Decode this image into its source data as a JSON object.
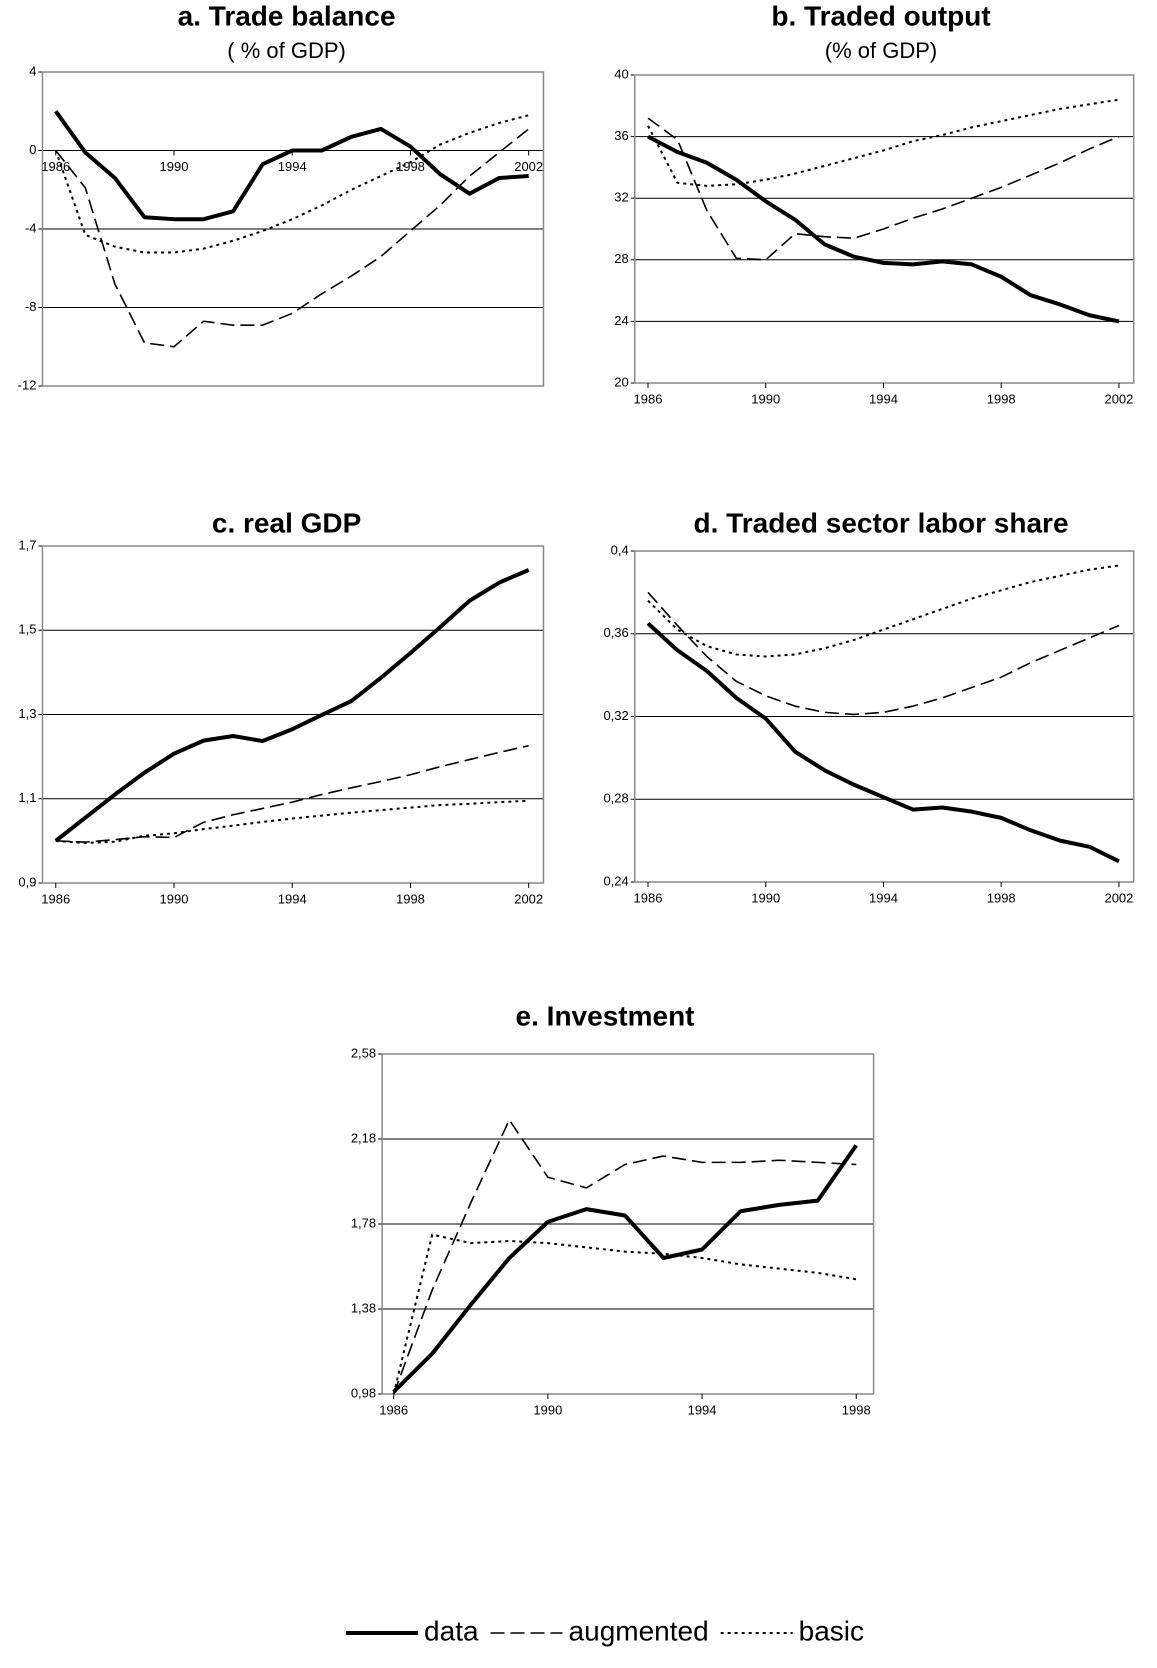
{
  "chart_data": [
    {
      "type": "line",
      "title": "a. Trade balance",
      "subtitle": "( % of GDP)",
      "x": [
        1986,
        1987,
        1988,
        1989,
        1990,
        1991,
        1992,
        1993,
        1994,
        1995,
        1996,
        1997,
        1998,
        1999,
        2000,
        2001,
        2002
      ],
      "xlim": [
        1985.55,
        2002.5
      ],
      "xticks": [
        1986,
        1990,
        1994,
        1998,
        2002
      ],
      "x_labels_at_zero": true,
      "ylim": [
        -12,
        4
      ],
      "yticks": [
        -12,
        -8,
        -4,
        0,
        4
      ],
      "grid": true,
      "series": [
        {
          "name": "data",
          "color": "#000000",
          "dash": "solid",
          "values": [
            2.0,
            -0.1,
            -1.4,
            -3.4,
            -3.5,
            -3.5,
            -3.1,
            -0.7,
            0.0,
            0.0,
            0.7,
            1.1,
            0.2,
            -1.2,
            -2.2,
            -1.4,
            -1.3
          ]
        },
        {
          "name": "augmented",
          "color": "#000000",
          "dash": "dashed",
          "values": [
            0,
            -1.9,
            -6.8,
            -9.8,
            -10.0,
            -8.7,
            -8.9,
            -8.9,
            -8.3,
            -7.3,
            -6.4,
            -5.4,
            -4.1,
            -2.8,
            -1.3,
            -0.1,
            1.1
          ]
        },
        {
          "name": "basic",
          "color": "#000000",
          "dash": "dotted",
          "values": [
            0,
            -4.3,
            -4.9,
            -5.2,
            -5.2,
            -5.0,
            -4.6,
            -4.1,
            -3.5,
            -2.8,
            -2.0,
            -1.3,
            -0.6,
            0.3,
            0.9,
            1.4,
            1.8
          ]
        }
      ]
    },
    {
      "type": "line",
      "title": "b. Traded output",
      "subtitle": "(% of GDP)",
      "x": [
        1986,
        1987,
        1988,
        1989,
        1990,
        1991,
        1992,
        1993,
        1994,
        1995,
        1996,
        1997,
        1998,
        1999,
        2000,
        2001,
        2002
      ],
      "xlim": [
        1985.55,
        2002.5
      ],
      "xticks": [
        1986,
        1990,
        1994,
        1998,
        2002
      ],
      "ylim": [
        20,
        40
      ],
      "yticks": [
        20,
        24,
        28,
        32,
        36,
        40
      ],
      "grid": true,
      "series": [
        {
          "name": "data",
          "color": "#000000",
          "dash": "solid",
          "values": [
            36.0,
            35.0,
            34.3,
            33.2,
            31.8,
            30.6,
            29.0,
            28.2,
            27.8,
            27.7,
            27.9,
            27.7,
            26.9,
            25.7,
            25.1,
            24.4,
            24.0
          ]
        },
        {
          "name": "augmented",
          "color": "#000000",
          "dash": "dashed",
          "values": [
            37.2,
            35.8,
            31.2,
            28.1,
            28.0,
            29.7,
            29.5,
            29.4,
            30.0,
            30.7,
            31.3,
            32.0,
            32.7,
            33.5,
            34.3,
            35.2,
            36.0
          ]
        },
        {
          "name": "basic",
          "color": "#000000",
          "dash": "dotted",
          "values": [
            36.7,
            33.0,
            32.8,
            32.9,
            33.2,
            33.6,
            34.1,
            34.6,
            35.1,
            35.7,
            36.1,
            36.6,
            37.0,
            37.4,
            37.8,
            38.1,
            38.4
          ]
        }
      ]
    },
    {
      "type": "line",
      "title": "c. real GDP",
      "x": [
        1986,
        1987,
        1988,
        1989,
        1990,
        1991,
        1992,
        1993,
        1994,
        1995,
        1996,
        1997,
        1998,
        1999,
        2000,
        2001,
        2002
      ],
      "xlim": [
        1985.55,
        2002.5
      ],
      "xticks": [
        1986,
        1990,
        1994,
        1998,
        2002
      ],
      "ylim": [
        0.9,
        1.7
      ],
      "yticks": [
        {
          "value": 0.9,
          "label": "0,9"
        },
        {
          "value": 1.1,
          "label": "1,1"
        },
        {
          "value": 1.3,
          "label": "1,3"
        },
        {
          "value": 1.5,
          "label": "1,5"
        },
        {
          "value": 1.7,
          "label": "1,7"
        }
      ],
      "grid": true,
      "series": [
        {
          "name": "data",
          "color": "#000000",
          "dash": "solid",
          "values": [
            1.0,
            1.055,
            1.11,
            1.162,
            1.207,
            1.238,
            1.249,
            1.237,
            1.265,
            1.299,
            1.332,
            1.387,
            1.446,
            1.507,
            1.57,
            1.613,
            1.643
          ]
        },
        {
          "name": "augmented",
          "color": "#000000",
          "dash": "dashed",
          "values": [
            1.0,
            0.997,
            1.003,
            1.01,
            1.008,
            1.044,
            1.062,
            1.077,
            1.092,
            1.11,
            1.126,
            1.141,
            1.157,
            1.176,
            1.193,
            1.21,
            1.226
          ]
        },
        {
          "name": "basic",
          "color": "#000000",
          "dash": "dotted",
          "values": [
            1.0,
            0.995,
            0.998,
            1.012,
            1.018,
            1.028,
            1.036,
            1.045,
            1.053,
            1.06,
            1.067,
            1.073,
            1.079,
            1.085,
            1.088,
            1.092,
            1.095
          ]
        }
      ]
    },
    {
      "type": "line",
      "title": "d. Traded sector labor share",
      "x": [
        1986,
        1987,
        1988,
        1989,
        1990,
        1991,
        1992,
        1993,
        1994,
        1995,
        1996,
        1997,
        1998,
        1999,
        2000,
        2001,
        2002
      ],
      "xlim": [
        1985.55,
        2002.5
      ],
      "xticks": [
        1986,
        1990,
        1994,
        1998,
        2002
      ],
      "ylim": [
        0.24,
        0.4
      ],
      "yticks": [
        {
          "value": 0.24,
          "label": "0,24"
        },
        {
          "value": 0.28,
          "label": "0,28"
        },
        {
          "value": 0.32,
          "label": "0,32"
        },
        {
          "value": 0.36,
          "label": "0,36"
        },
        {
          "value": 0.4,
          "label": "0,4"
        }
      ],
      "grid": true,
      "series": [
        {
          "name": "data",
          "color": "#000000",
          "dash": "solid",
          "values": [
            0.365,
            0.352,
            0.342,
            0.329,
            0.319,
            0.303,
            0.294,
            0.287,
            0.281,
            0.275,
            0.276,
            0.274,
            0.271,
            0.265,
            0.26,
            0.257,
            0.25
          ]
        },
        {
          "name": "augmented",
          "color": "#000000",
          "dash": "dashed",
          "values": [
            0.38,
            0.364,
            0.349,
            0.337,
            0.33,
            0.325,
            0.322,
            0.321,
            0.322,
            0.325,
            0.329,
            0.334,
            0.339,
            0.346,
            0.352,
            0.358,
            0.364
          ]
        },
        {
          "name": "basic",
          "color": "#000000",
          "dash": "dotted",
          "values": [
            0.376,
            0.362,
            0.354,
            0.35,
            0.349,
            0.35,
            0.353,
            0.357,
            0.362,
            0.367,
            0.372,
            0.377,
            0.381,
            0.385,
            0.388,
            0.391,
            0.393
          ]
        }
      ]
    },
    {
      "type": "line",
      "title": "e. Investment",
      "x": [
        1986,
        1987,
        1988,
        1989,
        1990,
        1991,
        1992,
        1993,
        1994,
        1995,
        1996,
        1997,
        1998
      ],
      "xlim": [
        1985.7,
        1998.45
      ],
      "xticks": [
        1986,
        1990,
        1994,
        1998
      ],
      "ylim": [
        0.98,
        2.58
      ],
      "yticks": [
        {
          "value": 0.98,
          "label": "0,98"
        },
        {
          "value": 1.38,
          "label": "1,38"
        },
        {
          "value": 1.78,
          "label": "1,78"
        },
        {
          "value": 2.18,
          "label": "2,18"
        },
        {
          "value": 2.58,
          "label": "2,58"
        }
      ],
      "grid": true,
      "series": [
        {
          "name": "data",
          "color": "#000000",
          "dash": "solid",
          "values": [
            0.99,
            1.17,
            1.4,
            1.62,
            1.79,
            1.85,
            1.82,
            1.62,
            1.66,
            1.84,
            1.87,
            1.89,
            2.15
          ]
        },
        {
          "name": "augmented",
          "color": "#000000",
          "dash": "dashed",
          "values": [
            0.98,
            1.47,
            1.88,
            2.27,
            2.0,
            1.95,
            2.06,
            2.1,
            2.07,
            2.07,
            2.08,
            2.07,
            2.06
          ]
        },
        {
          "name": "basic",
          "color": "#000000",
          "dash": "dotted",
          "values": [
            0.98,
            1.73,
            1.69,
            1.7,
            1.69,
            1.67,
            1.65,
            1.64,
            1.62,
            1.59,
            1.57,
            1.55,
            1.52
          ]
        }
      ]
    }
  ]
}
